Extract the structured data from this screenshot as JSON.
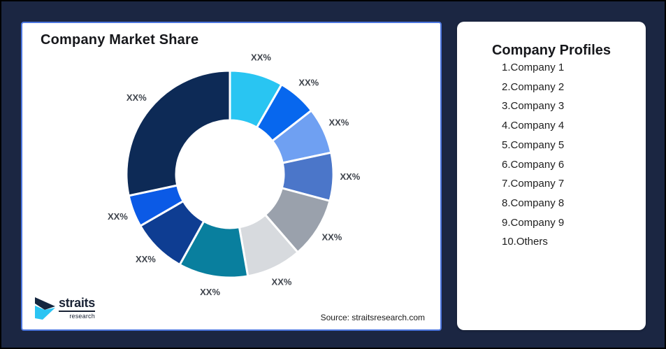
{
  "page": {
    "background": "#1B2642",
    "frame_border": "#000000"
  },
  "chart_card": {
    "title": "Company Market Share",
    "source_text": "Source: straitsresearch.com",
    "border_color": "#4C76DF",
    "logo": {
      "brand": "straits",
      "sub_brand": "research",
      "icon": "straits-chevron-icon",
      "icon_dark": "#14263F",
      "icon_cyan": "#2BC4F3"
    }
  },
  "profiles_card": {
    "title": "Company Profiles",
    "items": [
      "1.Company 1",
      "2.Company 2",
      "3.Company 3",
      "4.Company 4",
      "5.Company 5",
      "6.Company 6",
      "7.Company 7",
      "8.Company 8",
      "9.Company 9",
      "10.Others"
    ]
  },
  "chart_data": {
    "type": "pie",
    "subtype": "donut",
    "title": "Company Market Share",
    "categories": [
      "Company 1",
      "Company 2",
      "Company 3",
      "Company 4",
      "Company 5",
      "Company 6",
      "Company 7",
      "Company 8",
      "Company 9",
      "Others"
    ],
    "slice_labels": [
      "XX%",
      "XX%",
      "XX%",
      "XX%",
      "XX%",
      "XX%",
      "XX%",
      "XX%",
      "XX%",
      "XX%"
    ],
    "sweep_deg": [
      30,
      22,
      26,
      27,
      34,
      31,
      39,
      31,
      18,
      102
    ],
    "values_pct_est": [
      8.3,
      6.1,
      7.2,
      7.5,
      9.4,
      8.6,
      10.8,
      8.6,
      5.0,
      28.3
    ],
    "colors": [
      "#29C5F2",
      "#0767EE",
      "#6FA0F2",
      "#4B76C9",
      "#9AA1AC",
      "#D7DADE",
      "#097F9E",
      "#0E3D92",
      "#0B5AE6",
      "#0D2A56"
    ],
    "start_angle_deg": 0,
    "clockwise": true,
    "inner_radius_ratio": 0.52,
    "slice_gap_color": "#FFFFFF",
    "label_color": "#3F444C",
    "legend": "none"
  }
}
